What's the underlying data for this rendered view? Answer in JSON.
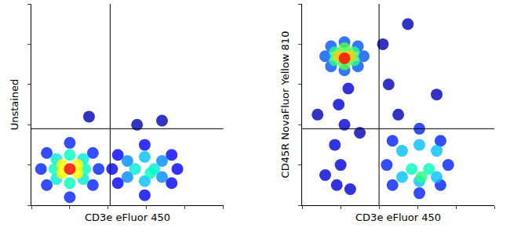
{
  "chart_data": [
    {
      "type": "scatter",
      "x_label": "CD3e eFluor 450",
      "y_label": "Unstained",
      "x": [
        30,
        55,
        68,
        45,
        73,
        45,
        73,
        59,
        59,
        42,
        76,
        50,
        68,
        50,
        68,
        59,
        59,
        54,
        64,
        62,
        8,
        32,
        8,
        32,
        20,
        20,
        5,
        35,
        13,
        27,
        13,
        27,
        12,
        28,
        20,
        20,
        16,
        24,
        16,
        24,
        20
      ],
      "y": [
        44,
        40,
        42,
        11,
        11,
        25,
        25,
        5,
        30,
        18,
        18,
        14,
        14,
        22,
        22,
        12,
        24,
        18,
        18,
        16,
        10,
        10,
        26,
        26,
        4,
        31,
        18,
        18,
        13,
        13,
        23,
        23,
        18,
        18,
        11,
        25,
        16,
        16,
        20,
        20,
        18
      ],
      "density": [
        0.05,
        0.05,
        0.05,
        0.12,
        0.12,
        0.12,
        0.12,
        0.12,
        0.12,
        0.12,
        0.12,
        0.25,
        0.25,
        0.25,
        0.25,
        0.3,
        0.3,
        0.4,
        0.4,
        0.45,
        0.15,
        0.15,
        0.15,
        0.15,
        0.15,
        0.15,
        0.15,
        0.15,
        0.4,
        0.4,
        0.4,
        0.4,
        0.45,
        0.45,
        0.45,
        0.45,
        0.75,
        0.75,
        0.75,
        0.75,
        1
      ],
      "density_range": [
        0,
        1
      ],
      "xlim": [
        0,
        100
      ],
      "ylim": [
        0,
        100
      ],
      "xticks": [
        0,
        20,
        40,
        60,
        80,
        100
      ],
      "yticks": [
        0,
        20,
        40,
        60,
        80,
        100
      ],
      "quadrant": {
        "x": 41,
        "y": 38
      },
      "tick_labels": false,
      "grid": false,
      "marker": "circle"
    },
    {
      "type": "scatter",
      "x_label": "CD3e eFluor 450",
      "y_label": "CD45R NovaFluor Yellow 810",
      "x": [
        18,
        20,
        17,
        22,
        19,
        24,
        30,
        8,
        45,
        55,
        70,
        42,
        50,
        12,
        25,
        47,
        72,
        47,
        72,
        61,
        61,
        44,
        76,
        52,
        70,
        52,
        70,
        61,
        61,
        57,
        66,
        62,
        12,
        32,
        22,
        22,
        15,
        29,
        15,
        29,
        17,
        27,
        17,
        27,
        22,
        22,
        19,
        25,
        22
      ],
      "y": [
        10,
        20,
        30,
        40,
        50,
        58,
        36,
        45,
        60,
        90,
        55,
        80,
        45,
        15,
        8,
        10,
        10,
        32,
        32,
        6,
        38,
        20,
        20,
        14,
        14,
        27,
        27,
        12,
        30,
        18,
        18,
        14,
        74,
        74,
        67,
        81,
        69,
        69,
        79,
        79,
        72,
        72,
        76,
        76,
        70,
        78,
        74,
        74,
        73
      ],
      "density": [
        0.08,
        0.08,
        0.08,
        0.08,
        0.08,
        0.08,
        0.05,
        0.05,
        0.05,
        0.05,
        0.05,
        0.05,
        0.05,
        0.08,
        0.08,
        0.15,
        0.15,
        0.15,
        0.15,
        0.15,
        0.15,
        0.15,
        0.15,
        0.3,
        0.3,
        0.3,
        0.3,
        0.3,
        0.3,
        0.45,
        0.45,
        0.5,
        0.2,
        0.2,
        0.2,
        0.2,
        0.2,
        0.2,
        0.2,
        0.2,
        0.5,
        0.5,
        0.5,
        0.5,
        0.55,
        0.55,
        0.8,
        0.8,
        1
      ],
      "density_range": [
        0,
        1
      ],
      "xlim": [
        0,
        100
      ],
      "ylim": [
        0,
        100
      ],
      "xticks": [
        0,
        20,
        40,
        60,
        80,
        100
      ],
      "yticks": [
        0,
        20,
        40,
        60,
        80,
        100
      ],
      "quadrant": {
        "x": 40,
        "y": 38
      },
      "tick_labels": false,
      "grid": false,
      "marker": "circle"
    }
  ]
}
